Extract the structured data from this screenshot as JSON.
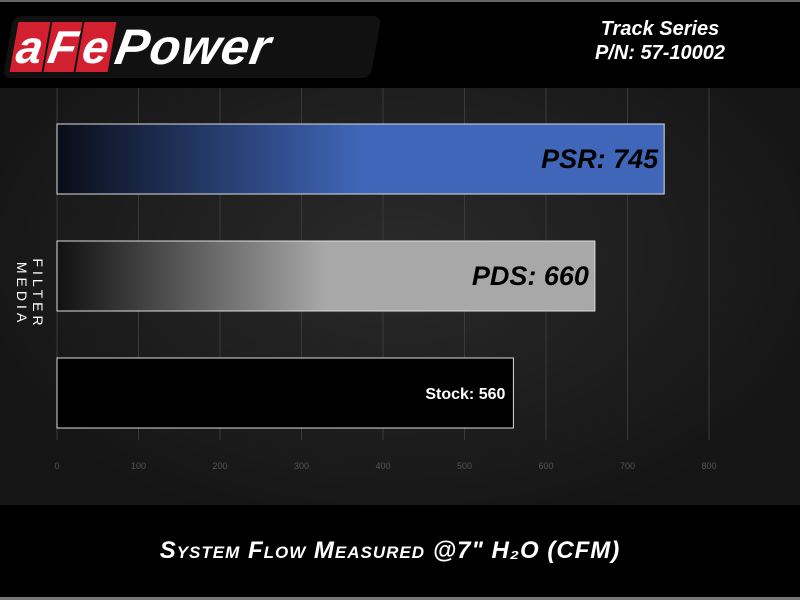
{
  "header": {
    "logo_text": [
      "a",
      "F",
      "e",
      "Power"
    ],
    "series": "Track Series",
    "part_number": "P/N: 57-10002"
  },
  "chart_data": {
    "type": "bar",
    "orientation": "horizontal",
    "title": "",
    "categories": [
      "PSR",
      "PDS",
      "Stock"
    ],
    "values": [
      745,
      660,
      560
    ],
    "data_labels": [
      "PSR: 745",
      "PDS: 660",
      "Stock: 560"
    ],
    "xlabel": "System Flow Measured @7\" H₂O (CFM)",
    "ylabel": "FILTER MEDIA",
    "xlim": [
      0,
      800
    ],
    "xticks": [
      "0",
      "100",
      "200",
      "300",
      "400",
      "500",
      "600",
      "700",
      "800"
    ],
    "grid": true,
    "colors": [
      "#3f66b8",
      "#a8a8a8",
      "#000000"
    ]
  }
}
